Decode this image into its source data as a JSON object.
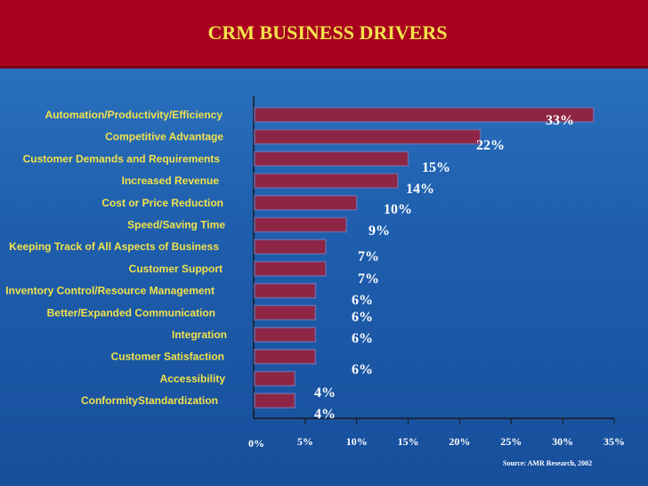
{
  "title": "CRM BUSINESS DRIVERS",
  "source": "Source:  AMR Research, 2002",
  "colors": {
    "bar": "#8e2545",
    "bar_stroke": "#6a6aa8",
    "title_bg": "#a8001e",
    "title_text": "#f2e24a",
    "label_text": "#f2e24a"
  },
  "chart_data": {
    "type": "bar",
    "orientation": "horizontal",
    "title": "CRM BUSINESS DRIVERS",
    "categories": [
      "Automation/Productivity/Efficiency",
      "Competitive Advantage",
      "Customer Demands and Requirements",
      "Increased Revenue",
      "Cost or Price Reduction",
      "Speed/Saving Time",
      "Keeping Track of All Aspects of Business",
      "Customer Support",
      "Inventory Control/Resource Management",
      "Better/Expanded Communication",
      "Integration",
      "Customer Satisfaction",
      "Accessibility",
      "ConformityStandardization"
    ],
    "values": [
      33,
      22,
      15,
      14,
      10,
      9,
      7,
      7,
      6,
      6,
      6,
      6,
      4,
      4
    ],
    "value_labels": [
      "33%",
      "22%",
      "15%",
      "14%",
      "10%",
      "9%",
      "7%",
      "7%",
      "6%",
      "6%",
      "6%",
      "6%",
      "4%",
      "4%"
    ],
    "xlim": [
      0,
      35
    ],
    "xticks": [
      "0%",
      "5%",
      "10%",
      "15%",
      "20%",
      "25%",
      "30%",
      "35%"
    ],
    "xlabel": "",
    "ylabel": "",
    "grid": false
  }
}
